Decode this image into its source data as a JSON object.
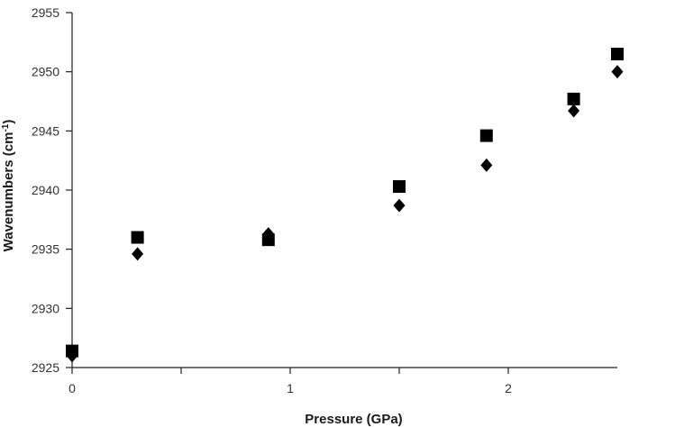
{
  "chart_data": {
    "type": "scatter",
    "title": "",
    "xlabel": "Pressure (GPa)",
    "ylabel_main": "Wavenumbers (cm",
    "ylabel_sup": "-1",
    "ylabel_close": ")",
    "xlim": [
      0,
      2.5
    ],
    "ylim": [
      2925,
      2955
    ],
    "xticks": [
      0,
      1,
      2
    ],
    "xticks_minor": [
      0.5,
      1.5
    ],
    "yticks": [
      2925,
      2930,
      2935,
      2940,
      2945,
      2950,
      2955
    ],
    "grid": false,
    "legend": "none",
    "series": [
      {
        "marker": "square",
        "color": "#000000",
        "points": [
          {
            "x": 0,
            "y": 2926.4
          },
          {
            "x": 0.3,
            "y": 2936.0
          },
          {
            "x": 0.9,
            "y": 2935.8
          },
          {
            "x": 1.5,
            "y": 2940.3
          },
          {
            "x": 1.9,
            "y": 2944.6
          },
          {
            "x": 2.3,
            "y": 2947.7
          },
          {
            "x": 2.5,
            "y": 2951.5
          }
        ]
      },
      {
        "marker": "diamond",
        "color": "#000000",
        "points": [
          {
            "x": 0,
            "y": 2926.0
          },
          {
            "x": 0.3,
            "y": 2934.6
          },
          {
            "x": 0.9,
            "y": 2936.3
          },
          {
            "x": 1.5,
            "y": 2938.7
          },
          {
            "x": 1.9,
            "y": 2942.1
          },
          {
            "x": 2.3,
            "y": 2946.7
          },
          {
            "x": 2.5,
            "y": 2950.0
          }
        ]
      }
    ]
  }
}
